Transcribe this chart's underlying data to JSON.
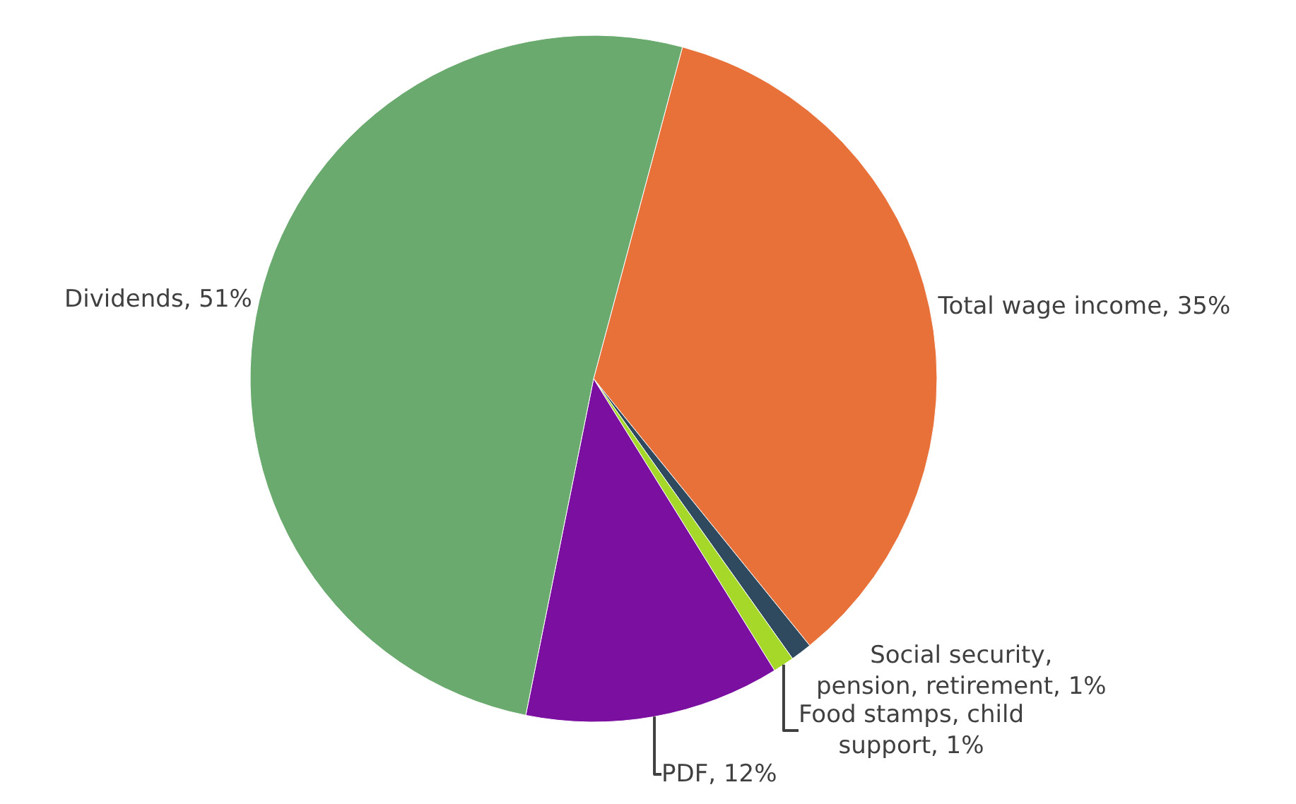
{
  "chart_data": {
    "type": "pie",
    "categories": [
      "Total wage income",
      "Social security, pension, retirement",
      "Food stamps, child support",
      "PDF",
      "Dividends"
    ],
    "values": [
      35,
      1,
      1,
      12,
      51
    ],
    "value_labels": [
      "35%",
      "1%",
      "1%",
      "12%",
      "51%"
    ],
    "colors": [
      "#e8713a",
      "#2f4a5e",
      "#a6d82a",
      "#7a0fa0",
      "#6aaa6e"
    ],
    "legend": false
  }
}
